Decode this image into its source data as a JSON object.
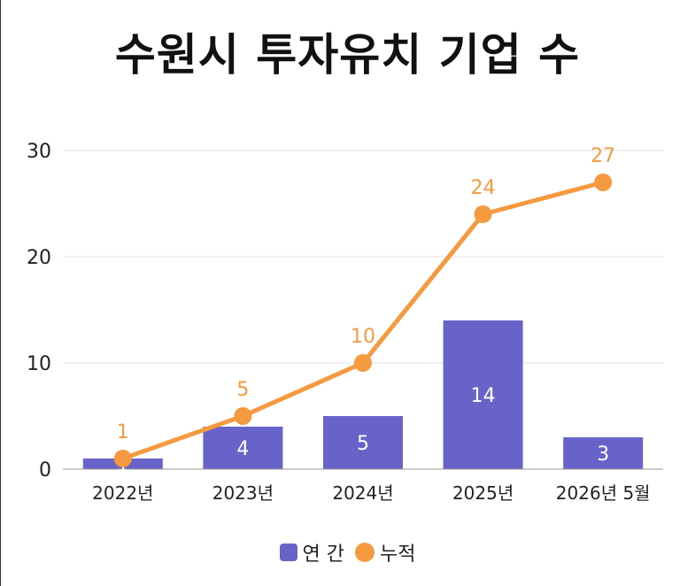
{
  "chart_data": {
    "type": "bar",
    "title": "수원시 투자유치 기업 수",
    "categories": [
      "2022년",
      "2023년",
      "2024년",
      "2025년",
      "2026년 5월"
    ],
    "ylim": [
      0,
      30
    ],
    "yticks": [
      0,
      10,
      20,
      30
    ],
    "grid": true,
    "legend_position": "bottom",
    "series": [
      {
        "name": "연 간",
        "kind": "bar",
        "color": "#6863c8",
        "values": [
          1,
          4,
          5,
          14,
          3
        ]
      },
      {
        "name": "누적",
        "kind": "line",
        "color": "#f59a3e",
        "values": [
          1,
          5,
          10,
          24,
          27
        ]
      }
    ]
  }
}
